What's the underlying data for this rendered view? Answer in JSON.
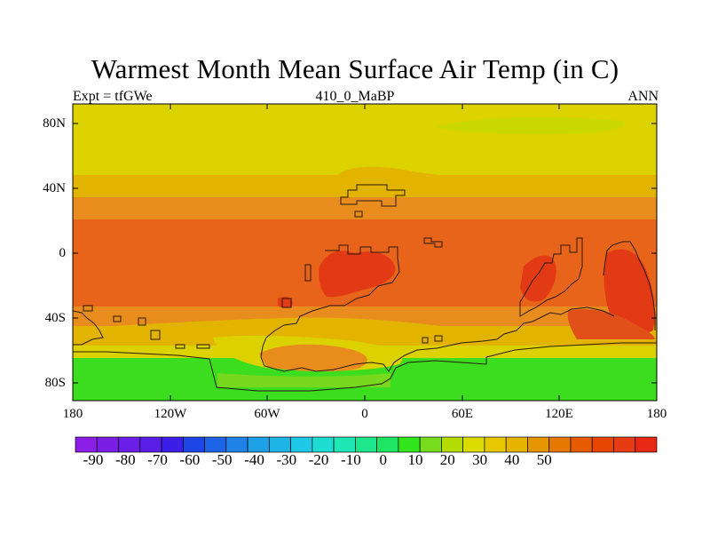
{
  "map": {
    "title": "Warmest Month Mean Surface Air Temp (in C)",
    "left_string": "Expt = tfGWe",
    "center_string": "410_0_MaBP",
    "right_string": "ANN",
    "lat_labels": [
      "80N",
      "40N",
      "0",
      "40S",
      "80S"
    ],
    "lon_labels": [
      "180",
      "120W",
      "60W",
      "0",
      "60E",
      "120E",
      "180"
    ]
  },
  "colorbar": {
    "labels": [
      "-90",
      "-80",
      "-70",
      "-60",
      "-50",
      "-40",
      "-30",
      "-20",
      "-10",
      "0",
      "10",
      "20",
      "30",
      "40",
      "50"
    ],
    "colors": [
      "#8b1ee6",
      "#7a1ee6",
      "#6a1ee6",
      "#5a1ee6",
      "#3c1ee6",
      "#1e46e6",
      "#1e64e6",
      "#1e82e6",
      "#1ea0e6",
      "#1eb4e6",
      "#1ec8e6",
      "#1edcd2",
      "#1ee6b4",
      "#1ee68c",
      "#1ee664",
      "#32e61e",
      "#78dc1e",
      "#b4dc00",
      "#dcdc00",
      "#e6c800",
      "#e6b400",
      "#e69600",
      "#e67800",
      "#e65a00",
      "#e64600",
      "#e63c14",
      "#e62814"
    ]
  },
  "palette": {
    "hot_red": "#e23a14",
    "deep_orange": "#e2501a",
    "orange": "#e8641a",
    "light_orange": "#e98c1e",
    "amber": "#e2b400",
    "yellow": "#dcd200",
    "yellow_green": "#c8d800",
    "green": "#3cdc1e"
  }
}
